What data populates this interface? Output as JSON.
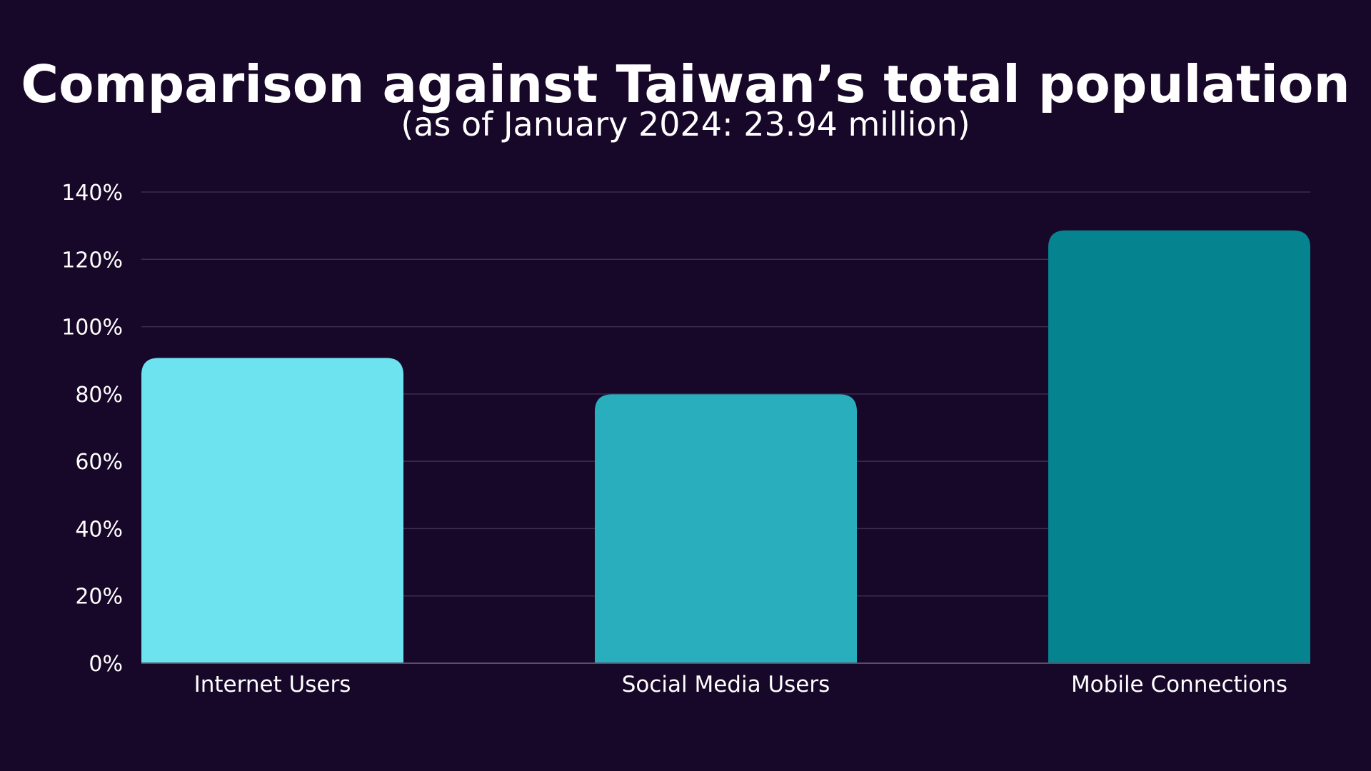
{
  "chart_data": {
    "type": "bar",
    "title": "Comparison against Taiwan’s total population",
    "subtitle": "(as of January 2024: 23.94 million)",
    "categories": [
      "Internet Users",
      "Social Media Users",
      "Mobile Connections"
    ],
    "values": [
      90.7,
      79.9,
      128.6
    ],
    "value_unit": "%",
    "ylim": [
      0,
      140
    ],
    "yticks": [
      0,
      20,
      40,
      60,
      80,
      100,
      120,
      140
    ],
    "ytick_labels": [
      "0%",
      "20%",
      "40%",
      "60%",
      "80%",
      "100%",
      "120%",
      "140%"
    ],
    "xlabel": "",
    "ylabel": "",
    "grid": true,
    "bar_colors": [
      "#6ce3ef",
      "#28aebd",
      "#05838f"
    ],
    "background_color": "#170728",
    "gridline_color": "#3a2d4d"
  }
}
